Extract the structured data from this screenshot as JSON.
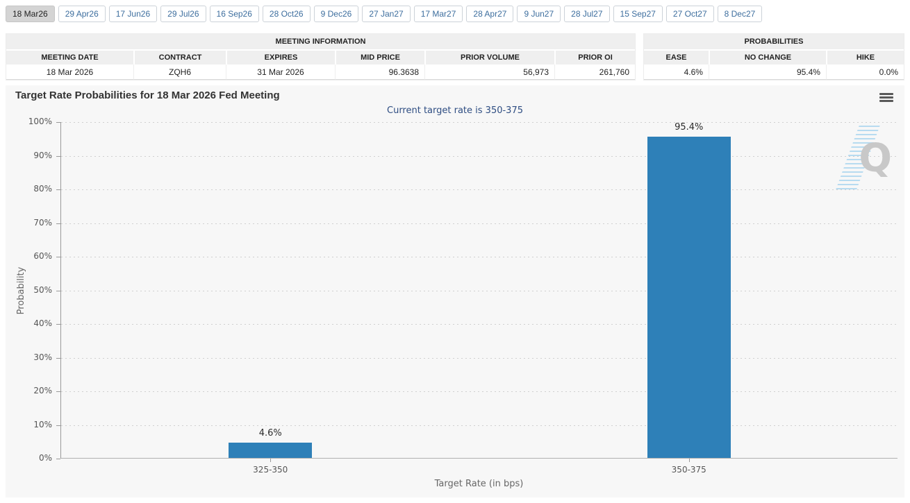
{
  "tabs": {
    "selected_index": 0,
    "items": [
      {
        "label": "18 Mar26"
      },
      {
        "label": "29 Apr26"
      },
      {
        "label": "17 Jun26"
      },
      {
        "label": "29 Jul26"
      },
      {
        "label": "16 Sep26"
      },
      {
        "label": "28 Oct26"
      },
      {
        "label": "9 Dec26"
      },
      {
        "label": "27 Jan27"
      },
      {
        "label": "17 Mar27"
      },
      {
        "label": "28 Apr27"
      },
      {
        "label": "9 Jun27"
      },
      {
        "label": "28 Jul27"
      },
      {
        "label": "15 Sep27"
      },
      {
        "label": "27 Oct27"
      },
      {
        "label": "8 Dec27"
      }
    ]
  },
  "meeting_table": {
    "caption": "MEETING INFORMATION",
    "headers": [
      "MEETING DATE",
      "CONTRACT",
      "EXPIRES",
      "MID PRICE",
      "PRIOR VOLUME",
      "PRIOR OI"
    ],
    "row": [
      "18 Mar 2026",
      "ZQH6",
      "31 Mar 2026",
      "96.3638",
      "56,973",
      "261,760"
    ]
  },
  "probabilities_table": {
    "caption": "PROBABILITIES",
    "headers": [
      "EASE",
      "NO CHANGE",
      "HIKE"
    ],
    "row": [
      "4.6%",
      "95.4%",
      "0.0%"
    ]
  },
  "watermark": {
    "letter": "Q"
  },
  "icons": {
    "chart_menu": "hamburger-menu-icon",
    "watermark": "quikstrike-q-logo"
  },
  "colors": {
    "bar": "#2e80b8",
    "subtitle_text": "#2e4d82",
    "tab_text": "#3d6e9e",
    "selected_tab_bg": "#d4d4d4",
    "chart_background": "#f7f7f7"
  },
  "chart_data": {
    "type": "bar",
    "title": "Target Rate Probabilities for 18 Mar 2026 Fed Meeting",
    "subtitle": "Current target rate is 350-375",
    "categories": [
      "325-350",
      "350-375"
    ],
    "values": [
      4.6,
      95.4
    ],
    "data_labels": [
      "4.6%",
      "95.4%"
    ],
    "xlabel": "Target Rate (in bps)",
    "ylabel": "Probability",
    "ylim": [
      0,
      100
    ],
    "ytick_step": 10,
    "ytick_suffix": "%",
    "grid": "horizontal-dotted",
    "legend": "none",
    "bar_color": "#2e80b8"
  }
}
